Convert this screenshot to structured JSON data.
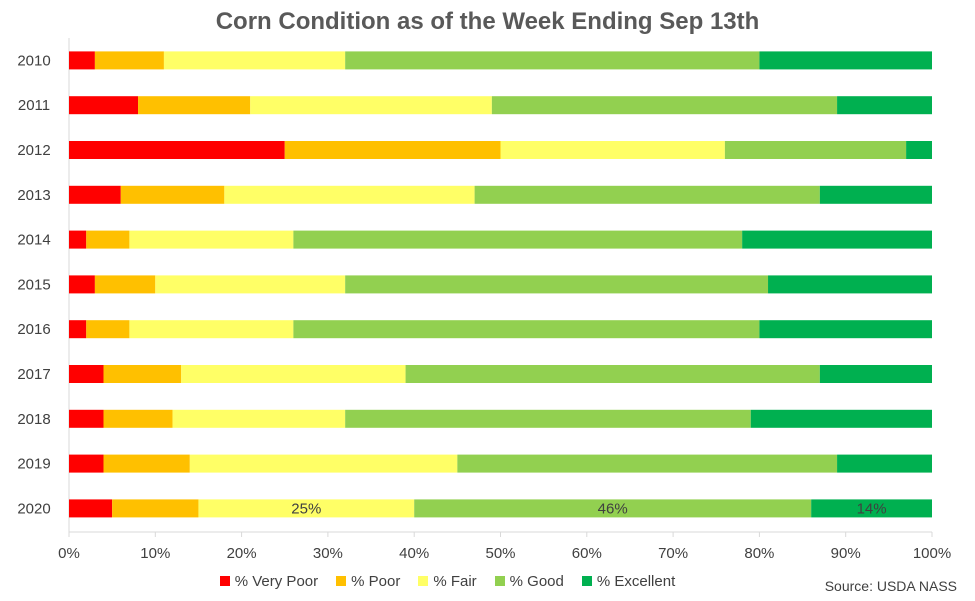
{
  "chart_data": {
    "type": "bar",
    "orientation": "horizontal",
    "stacked": true,
    "title": "Corn Condition as of the Week Ending Sep 13th",
    "categories": [
      "2010",
      "2011",
      "2012",
      "2013",
      "2014",
      "2015",
      "2016",
      "2017",
      "2018",
      "2019",
      "2020"
    ],
    "series": [
      {
        "name": "% Very Poor",
        "color": "#ff0000",
        "values": [
          3,
          8,
          25,
          6,
          2,
          3,
          2,
          4,
          4,
          4,
          5
        ]
      },
      {
        "name": "% Poor",
        "color": "#ffc000",
        "values": [
          8,
          13,
          25,
          12,
          5,
          7,
          5,
          9,
          8,
          10,
          10
        ]
      },
      {
        "name": "% Fair",
        "color": "#ffff66",
        "values": [
          21,
          28,
          26,
          29,
          19,
          22,
          19,
          26,
          20,
          31,
          25
        ]
      },
      {
        "name": "% Good",
        "color": "#92d050",
        "values": [
          48,
          40,
          21,
          40,
          52,
          49,
          54,
          48,
          47,
          44,
          46
        ]
      },
      {
        "name": "% Excellent",
        "color": "#00b050",
        "values": [
          20,
          11,
          3,
          13,
          22,
          19,
          20,
          13,
          21,
          11,
          14
        ]
      }
    ],
    "data_labels": [
      {
        "category": "2020",
        "series": "% Fair",
        "text": "25%"
      },
      {
        "category": "2020",
        "series": "% Good",
        "text": "46%"
      },
      {
        "category": "2020",
        "series": "% Excellent",
        "text": "14%"
      }
    ],
    "x_ticks": [
      "0%",
      "10%",
      "20%",
      "30%",
      "40%",
      "50%",
      "60%",
      "70%",
      "80%",
      "90%",
      "100%"
    ],
    "xlim": [
      0,
      100
    ],
    "grid": false,
    "legend_position": "bottom",
    "source": "Source: USDA NASS"
  }
}
